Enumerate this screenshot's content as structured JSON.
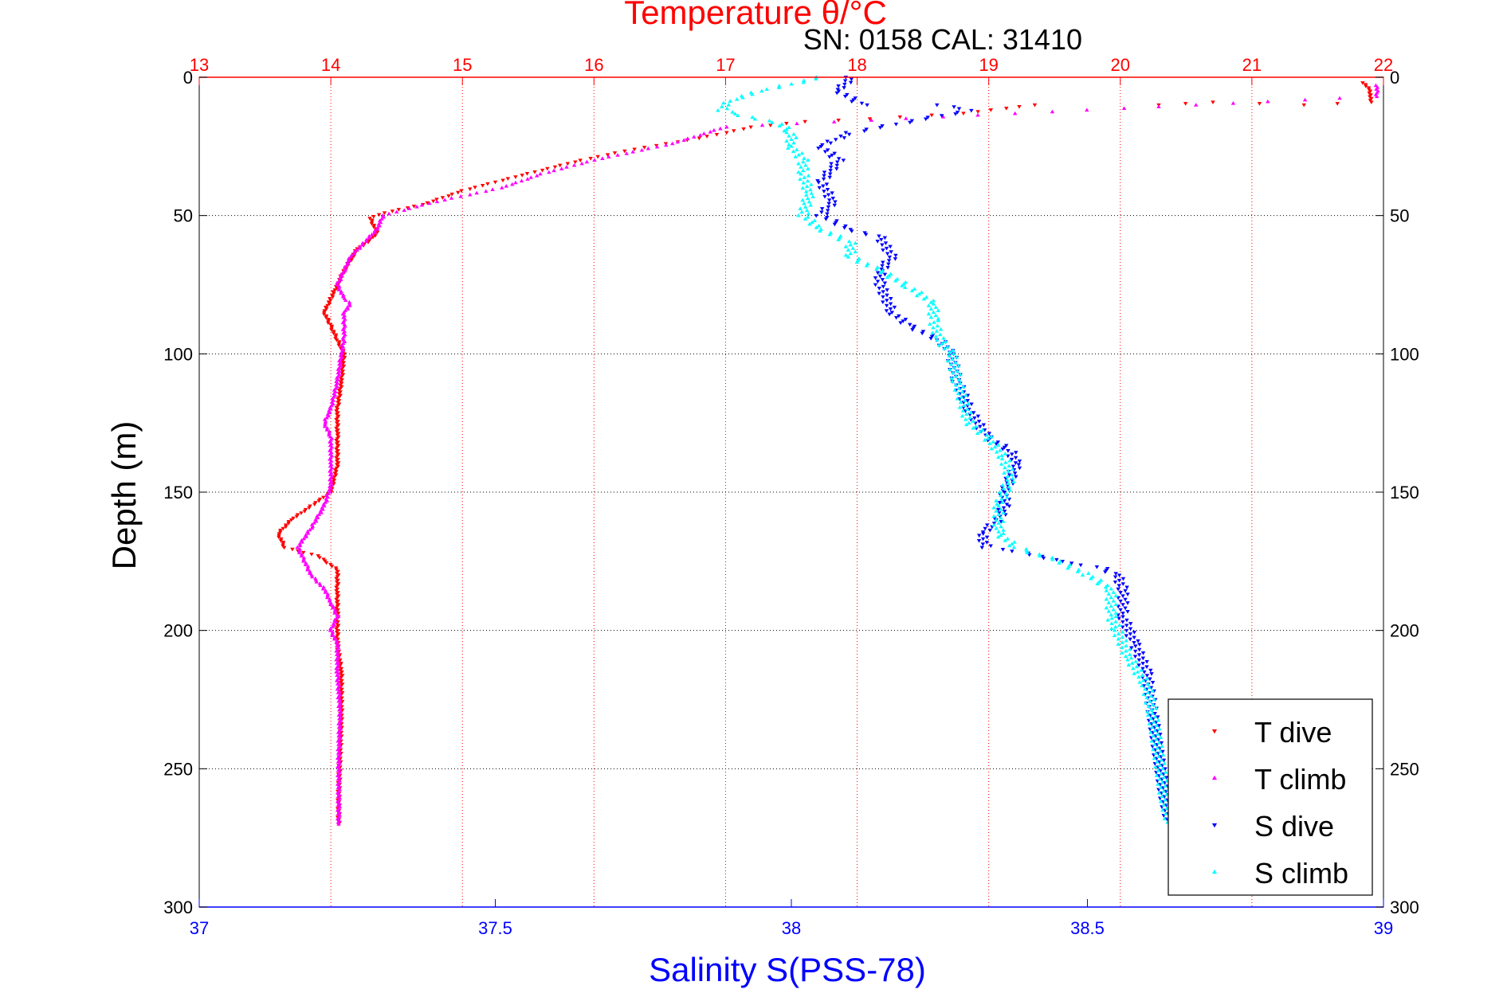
{
  "chart_data": {
    "type": "scatter",
    "title": "Temperature θ/°C",
    "subtitle": "SN: 0158  CAL: 31410",
    "xlabel": "Salinity S(PSS-78)",
    "ylabel": "Depth (m)",
    "top_axis": {
      "label": "Temperature θ/°C",
      "range": [
        13,
        22
      ],
      "ticks": [
        "13",
        "14",
        "15",
        "16",
        "17",
        "18",
        "19",
        "20",
        "21",
        "22"
      ],
      "color": "#ff0000"
    },
    "bottom_axis": {
      "label": "Salinity S(PSS-78)",
      "range": [
        37,
        39
      ],
      "ticks": [
        "37",
        "37.5",
        "38",
        "38.5",
        "39"
      ],
      "color": "#0000ff"
    },
    "y_axis": {
      "range": [
        0,
        300
      ],
      "reversed": true,
      "ticks": [
        "0",
        "50",
        "100",
        "150",
        "200",
        "250",
        "300"
      ]
    },
    "grid": true,
    "legend_position": "bottom-right",
    "series": [
      {
        "name": "T dive",
        "axis": "top",
        "color": "#ff0000",
        "marker": "triangle-down",
        "points": [
          [
            21.85,
            2
          ],
          [
            21.9,
            5
          ],
          [
            21.9,
            9
          ],
          [
            21.4,
            10
          ],
          [
            20.7,
            9
          ],
          [
            20.3,
            10
          ],
          [
            19.35,
            10
          ],
          [
            18.8,
            13
          ],
          [
            18.1,
            15
          ],
          [
            17.6,
            16
          ],
          [
            17.2,
            18
          ],
          [
            16.8,
            22
          ],
          [
            16.3,
            26
          ],
          [
            15.9,
            30
          ],
          [
            15.4,
            36
          ],
          [
            15.0,
            41
          ],
          [
            14.7,
            46
          ],
          [
            14.4,
            49
          ],
          [
            14.3,
            51
          ],
          [
            14.35,
            56
          ],
          [
            14.3,
            59
          ],
          [
            14.2,
            62
          ],
          [
            14.15,
            66
          ],
          [
            14.1,
            70
          ],
          [
            14.05,
            75
          ],
          [
            14.0,
            80
          ],
          [
            13.95,
            85
          ],
          [
            14.0,
            90
          ],
          [
            14.05,
            95
          ],
          [
            14.1,
            100
          ],
          [
            14.08,
            110
          ],
          [
            14.05,
            120
          ],
          [
            14.05,
            130
          ],
          [
            14.05,
            140
          ],
          [
            14.0,
            150
          ],
          [
            13.85,
            155
          ],
          [
            13.7,
            160
          ],
          [
            13.6,
            165
          ],
          [
            13.65,
            170
          ],
          [
            13.9,
            173
          ],
          [
            14.05,
            178
          ],
          [
            14.05,
            185
          ],
          [
            14.05,
            195
          ],
          [
            14.05,
            205
          ],
          [
            14.08,
            215
          ],
          [
            14.08,
            230
          ],
          [
            14.07,
            245
          ],
          [
            14.06,
            260
          ],
          [
            14.06,
            270
          ]
        ]
      },
      {
        "name": "T climb",
        "axis": "top",
        "color": "#ff00ff",
        "marker": "triangle-up",
        "points": [
          [
            21.95,
            3
          ],
          [
            21.95,
            7
          ],
          [
            17.0,
            18
          ],
          [
            16.6,
            24
          ],
          [
            16.0,
            30
          ],
          [
            15.6,
            35
          ],
          [
            15.3,
            40
          ],
          [
            14.8,
            45
          ],
          [
            14.4,
            50
          ],
          [
            14.35,
            55
          ],
          [
            14.25,
            60
          ],
          [
            14.15,
            65
          ],
          [
            14.1,
            70
          ],
          [
            14.05,
            75
          ],
          [
            14.1,
            80
          ],
          [
            14.15,
            82
          ],
          [
            14.1,
            85
          ],
          [
            14.1,
            90
          ],
          [
            14.1,
            95
          ],
          [
            14.08,
            100
          ],
          [
            14.05,
            110
          ],
          [
            14.0,
            120
          ],
          [
            13.95,
            125
          ],
          [
            14.0,
            130
          ],
          [
            14.0,
            140
          ],
          [
            14.0,
            148
          ],
          [
            13.95,
            155
          ],
          [
            13.85,
            163
          ],
          [
            13.75,
            170
          ],
          [
            13.85,
            180
          ],
          [
            13.95,
            185
          ],
          [
            14.0,
            190
          ],
          [
            14.05,
            195
          ],
          [
            14.0,
            200
          ],
          [
            14.05,
            205
          ],
          [
            14.05,
            215
          ],
          [
            14.07,
            230
          ],
          [
            14.06,
            245
          ],
          [
            14.06,
            260
          ],
          [
            14.06,
            270
          ]
        ]
      },
      {
        "name": "S dive",
        "axis": "bottom",
        "color": "#0000ff",
        "marker": "triangle-down",
        "points": [
          [
            38.1,
            0
          ],
          [
            38.08,
            5
          ],
          [
            38.12,
            10
          ],
          [
            38.25,
            10
          ],
          [
            38.3,
            12
          ],
          [
            38.1,
            20
          ],
          [
            38.05,
            25
          ],
          [
            38.08,
            30
          ],
          [
            38.05,
            38
          ],
          [
            38.07,
            45
          ],
          [
            38.05,
            50
          ],
          [
            38.1,
            55
          ],
          [
            38.15,
            58
          ],
          [
            38.17,
            65
          ],
          [
            38.15,
            70
          ],
          [
            38.15,
            75
          ],
          [
            38.17,
            85
          ],
          [
            38.2,
            90
          ],
          [
            38.25,
            95
          ],
          [
            38.27,
            100
          ],
          [
            38.28,
            110
          ],
          [
            38.3,
            120
          ],
          [
            38.33,
            130
          ],
          [
            38.37,
            135
          ],
          [
            38.38,
            140
          ],
          [
            38.37,
            145
          ],
          [
            38.36,
            150
          ],
          [
            38.36,
            155
          ],
          [
            38.35,
            160
          ],
          [
            38.32,
            165
          ],
          [
            38.33,
            170
          ],
          [
            38.4,
            172
          ],
          [
            38.45,
            175
          ],
          [
            38.52,
            177
          ],
          [
            38.55,
            180
          ],
          [
            38.56,
            185
          ],
          [
            38.56,
            195
          ],
          [
            38.58,
            205
          ],
          [
            38.6,
            215
          ],
          [
            38.61,
            230
          ],
          [
            38.62,
            245
          ],
          [
            38.63,
            260
          ],
          [
            38.64,
            270
          ]
        ]
      },
      {
        "name": "S climb",
        "axis": "bottom",
        "color": "#00ffff",
        "marker": "triangle-up",
        "points": [
          [
            38.05,
            0
          ],
          [
            37.95,
            5
          ],
          [
            37.9,
            8
          ],
          [
            37.88,
            12
          ],
          [
            37.98,
            17
          ],
          [
            38.0,
            20
          ],
          [
            38.0,
            25
          ],
          [
            38.02,
            30
          ],
          [
            38.02,
            35
          ],
          [
            38.03,
            42
          ],
          [
            38.02,
            50
          ],
          [
            38.05,
            55
          ],
          [
            38.1,
            60
          ],
          [
            38.1,
            65
          ],
          [
            38.15,
            70
          ],
          [
            38.2,
            76
          ],
          [
            38.24,
            82
          ],
          [
            38.24,
            88
          ],
          [
            38.25,
            95
          ],
          [
            38.27,
            100
          ],
          [
            38.28,
            110
          ],
          [
            38.3,
            125
          ],
          [
            38.33,
            130
          ],
          [
            38.36,
            138
          ],
          [
            38.37,
            145
          ],
          [
            38.36,
            150
          ],
          [
            38.35,
            155
          ],
          [
            38.35,
            165
          ],
          [
            38.38,
            170
          ],
          [
            38.45,
            175
          ],
          [
            38.5,
            180
          ],
          [
            38.54,
            185
          ],
          [
            38.54,
            195
          ],
          [
            38.55,
            200
          ],
          [
            38.57,
            210
          ],
          [
            38.6,
            220
          ],
          [
            38.61,
            230
          ],
          [
            38.62,
            245
          ],
          [
            38.63,
            260
          ],
          [
            38.64,
            270
          ]
        ]
      }
    ]
  }
}
